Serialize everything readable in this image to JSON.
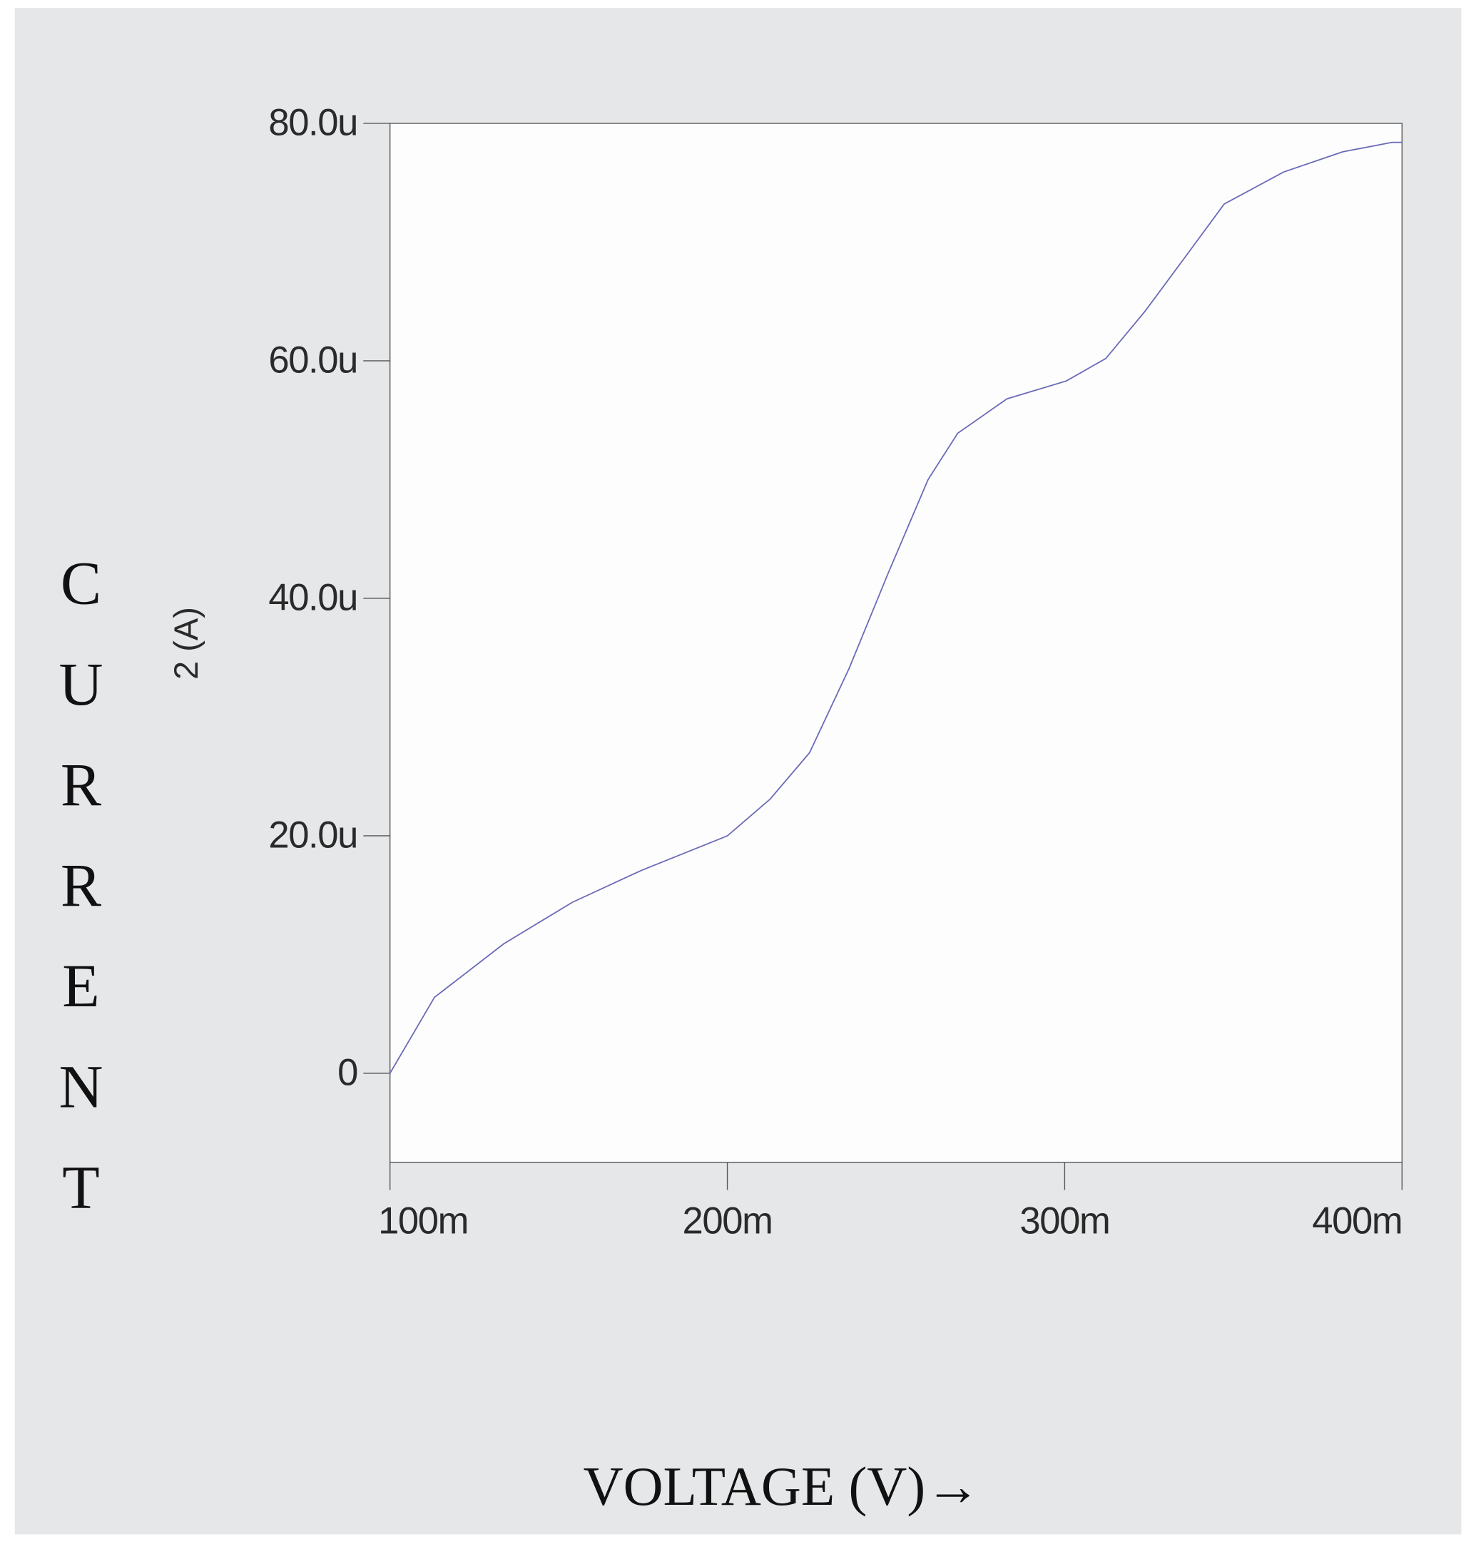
{
  "chart_data": {
    "type": "line",
    "y_label_vertical": "CURRENT",
    "y_label": "2 (A)",
    "x_label": "VOLTAGE (V)→",
    "x": [
      100,
      113.2,
      133.7,
      154.1,
      174.6,
      200,
      212.7,
      224.4,
      236.1,
      247.8,
      259.5,
      268.3,
      282.9,
      300.5,
      312.2,
      323.9,
      335.6,
      347.3,
      364.9,
      382.4,
      397.0,
      400
    ],
    "series": [
      {
        "name": "2",
        "color": "#6a6ab8",
        "values": [
          0,
          6.4,
          10.9,
          14.4,
          17.1,
          20,
          23.1,
          27.0,
          34.1,
          42.2,
          50.0,
          53.9,
          56.8,
          58.3,
          60.2,
          64.2,
          68.7,
          73.2,
          75.9,
          77.6,
          78.4,
          78.4
        ]
      }
    ],
    "xlim": [
      100,
      400
    ],
    "xticks": [
      {
        "value": 100,
        "label": "100m"
      },
      {
        "value": 200,
        "label": "200m"
      },
      {
        "value": 300,
        "label": "300m"
      },
      {
        "value": 400,
        "label": "400m"
      }
    ],
    "ylim": [
      -7.5,
      80
    ],
    "yticks": [
      {
        "value": 0,
        "label": "0"
      },
      {
        "value": 20,
        "label": "20.0u"
      },
      {
        "value": 40,
        "label": "40.0u"
      },
      {
        "value": 60,
        "label": "60.0u"
      },
      {
        "value": 80,
        "label": "80.0u"
      }
    ]
  }
}
